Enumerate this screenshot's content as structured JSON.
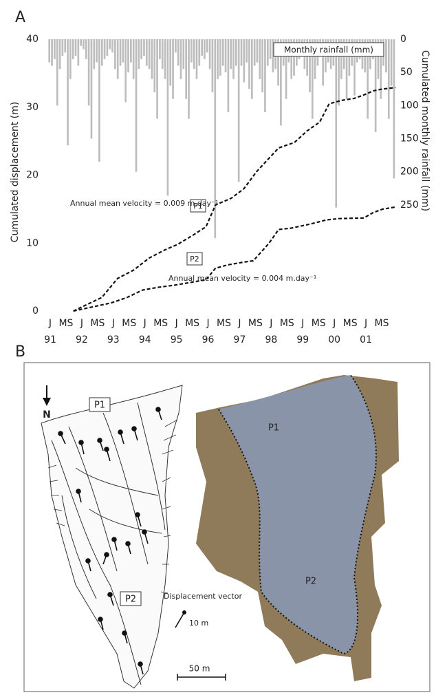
{
  "chart_data": {
    "type": "line",
    "panel_label": "A",
    "ylabel": "Cumulated displacement (m)",
    "y2label": "Cumulated monthly rainfall (mm)",
    "xlim": [
      1991,
      2002
    ],
    "ylim": [
      0,
      40
    ],
    "yticks": [
      0,
      10,
      20,
      30,
      40
    ],
    "y2lim": [
      0,
      410
    ],
    "y2_inverted": true,
    "y2ticks": [
      0,
      50,
      100,
      150,
      200,
      250
    ],
    "xticks": [
      {
        "value": 1991,
        "label": "J"
      },
      {
        "value": 1991.5,
        "label": "MS"
      },
      {
        "value": 1992,
        "label": "J"
      },
      {
        "value": 1992.5,
        "label": "MS"
      },
      {
        "value": 1993,
        "label": "J"
      },
      {
        "value": 1993.5,
        "label": "MS"
      },
      {
        "value": 1994,
        "label": "J"
      },
      {
        "value": 1994.5,
        "label": "MS"
      },
      {
        "value": 1995,
        "label": "J"
      },
      {
        "value": 1995.5,
        "label": "MS"
      },
      {
        "value": 1996,
        "label": "J"
      },
      {
        "value": 1996.5,
        "label": "MS"
      },
      {
        "value": 1997,
        "label": "J"
      },
      {
        "value": 1997.5,
        "label": "MS"
      },
      {
        "value": 1998,
        "label": "J"
      },
      {
        "value": 1998.5,
        "label": "MS"
      },
      {
        "value": 1999,
        "label": "J"
      },
      {
        "value": 1999.5,
        "label": "MS"
      },
      {
        "value": 2000,
        "label": "J"
      },
      {
        "value": 2000.5,
        "label": "MS"
      },
      {
        "value": 2001,
        "label": "J"
      },
      {
        "value": 2001.5,
        "label": "MS"
      }
    ],
    "year_ticks": [
      {
        "value": 1991,
        "label": "91"
      },
      {
        "value": 1992,
        "label": "92"
      },
      {
        "value": 1993,
        "label": "93"
      },
      {
        "value": 1994,
        "label": "94"
      },
      {
        "value": 1995,
        "label": "95"
      },
      {
        "value": 1996,
        "label": "96"
      },
      {
        "value": 1997,
        "label": "97"
      },
      {
        "value": 1998,
        "label": "98"
      },
      {
        "value": 1999,
        "label": "99"
      },
      {
        "value": 2000,
        "label": "00"
      },
      {
        "value": 2001,
        "label": "01"
      }
    ],
    "series": [
      {
        "name": "P1",
        "type": "line",
        "color": "#111111",
        "dashed": true,
        "x": [
          1991.8,
          1992.7,
          1993.2,
          1993.7,
          1994.2,
          1994.7,
          1995.1,
          1995.6,
          1996,
          1996.3,
          1996.8,
          1997.2,
          1997.6,
          1998,
          1998.3,
          1998.8,
          1999.2,
          1999.6,
          1999.9,
          2000.3,
          2000.7,
          2001,
          2001.3,
          2001.5,
          2002
        ],
        "values": [
          0,
          2,
          4.8,
          6,
          7.8,
          9,
          9.8,
          11.2,
          12.4,
          15.6,
          16.6,
          18,
          20.5,
          22.5,
          24,
          24.8,
          26.5,
          27.8,
          30.5,
          31,
          31.3,
          31.8,
          32.4,
          32.6,
          32.9
        ]
      },
      {
        "name": "P2",
        "type": "line",
        "color": "#111111",
        "dashed": true,
        "x": [
          1991.8,
          1993,
          1993.5,
          1994,
          1994.5,
          1995,
          1995.5,
          1996,
          1996.3,
          1996.7,
          1997.2,
          1997.5,
          1998,
          1998.3,
          1998.7,
          1999.3,
          1999.8,
          2000.2,
          2001,
          2001.3,
          2001.6,
          2002
        ],
        "values": [
          0,
          1.2,
          2,
          3.1,
          3.5,
          3.8,
          4.2,
          4.6,
          6.3,
          6.8,
          7.2,
          7.4,
          10,
          12,
          12.2,
          12.8,
          13.4,
          13.6,
          13.7,
          14.5,
          15,
          15.3
        ]
      },
      {
        "name": "Monthly rainfall (mm)",
        "type": "bar",
        "axis": "y2",
        "color": "#bdbdbd",
        "values": [
          35,
          40,
          30,
          100,
          45,
          25,
          20,
          160,
          60,
          30,
          25,
          40,
          10,
          15,
          30,
          100,
          150,
          45,
          35,
          185,
          40,
          30,
          25,
          15,
          20,
          45,
          60,
          40,
          35,
          95,
          50,
          35,
          60,
          200,
          45,
          30,
          25,
          40,
          45,
          60,
          80,
          120,
          30,
          45,
          60,
          236,
          70,
          90,
          20,
          40,
          60,
          45,
          90,
          120,
          35,
          45,
          60,
          40,
          25,
          30,
          20,
          45,
          80,
          300,
          60,
          55,
          40,
          50,
          110,
          45,
          60,
          40,
          215,
          40,
          65,
          35,
          75,
          90,
          40,
          35,
          60,
          80,
          110,
          40,
          30,
          50,
          45,
          70,
          130,
          40,
          90,
          35,
          60,
          55,
          40,
          30,
          20,
          45,
          55,
          80,
          120,
          60,
          40,
          25,
          70,
          50,
          35,
          45,
          40,
          254,
          100,
          60,
          45,
          90,
          55,
          40,
          85,
          35,
          30,
          45,
          50,
          120,
          45,
          30,
          140,
          60,
          90,
          40,
          50,
          120,
          70,
          210
        ]
      }
    ],
    "annotations": [
      "Annual mean velocity = 0.009 m.day⁻¹",
      "Annual mean velocity = 0.004 m.day⁻¹"
    ]
  },
  "panel_b": {
    "label": "B",
    "north": "N",
    "map_labels": [
      "P1",
      "P2"
    ],
    "photo_labels": [
      "P1",
      "P2"
    ],
    "legend": "Displacement vector",
    "legend_scale": "10 m",
    "scale_bar": "50 m"
  }
}
